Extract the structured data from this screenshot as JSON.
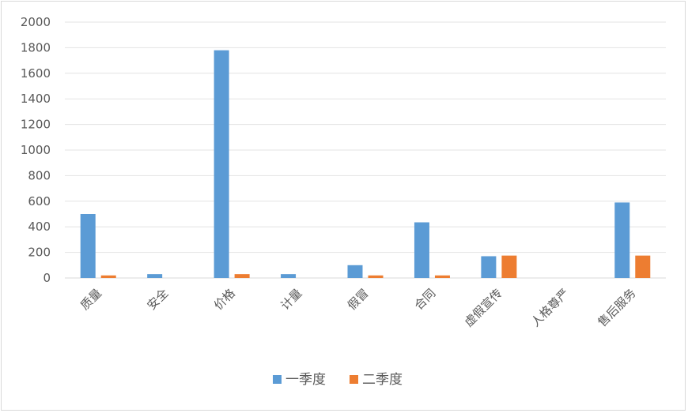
{
  "chart_data": {
    "type": "bar",
    "categories": [
      "质量",
      "安全",
      "价格",
      "计量",
      "假冒",
      "合同",
      "虚假宣传",
      "人格尊严",
      "售后服务"
    ],
    "series": [
      {
        "name": "一季度",
        "values": [
          500,
          30,
          1780,
          30,
          100,
          435,
          170,
          0,
          590
        ],
        "color": "#5b9bd5"
      },
      {
        "name": "二季度",
        "values": [
          20,
          0,
          30,
          0,
          20,
          20,
          175,
          0,
          175
        ],
        "color": "#ed7d31"
      }
    ],
    "yticks": [
      "0",
      "200",
      "400",
      "600",
      "800",
      "1000",
      "1200",
      "1400",
      "1600",
      "1800",
      "2000"
    ],
    "ylim": [
      0,
      2000
    ],
    "grid": true,
    "legend_position": "bottom",
    "title": "",
    "xlabel": "",
    "ylabel": ""
  }
}
